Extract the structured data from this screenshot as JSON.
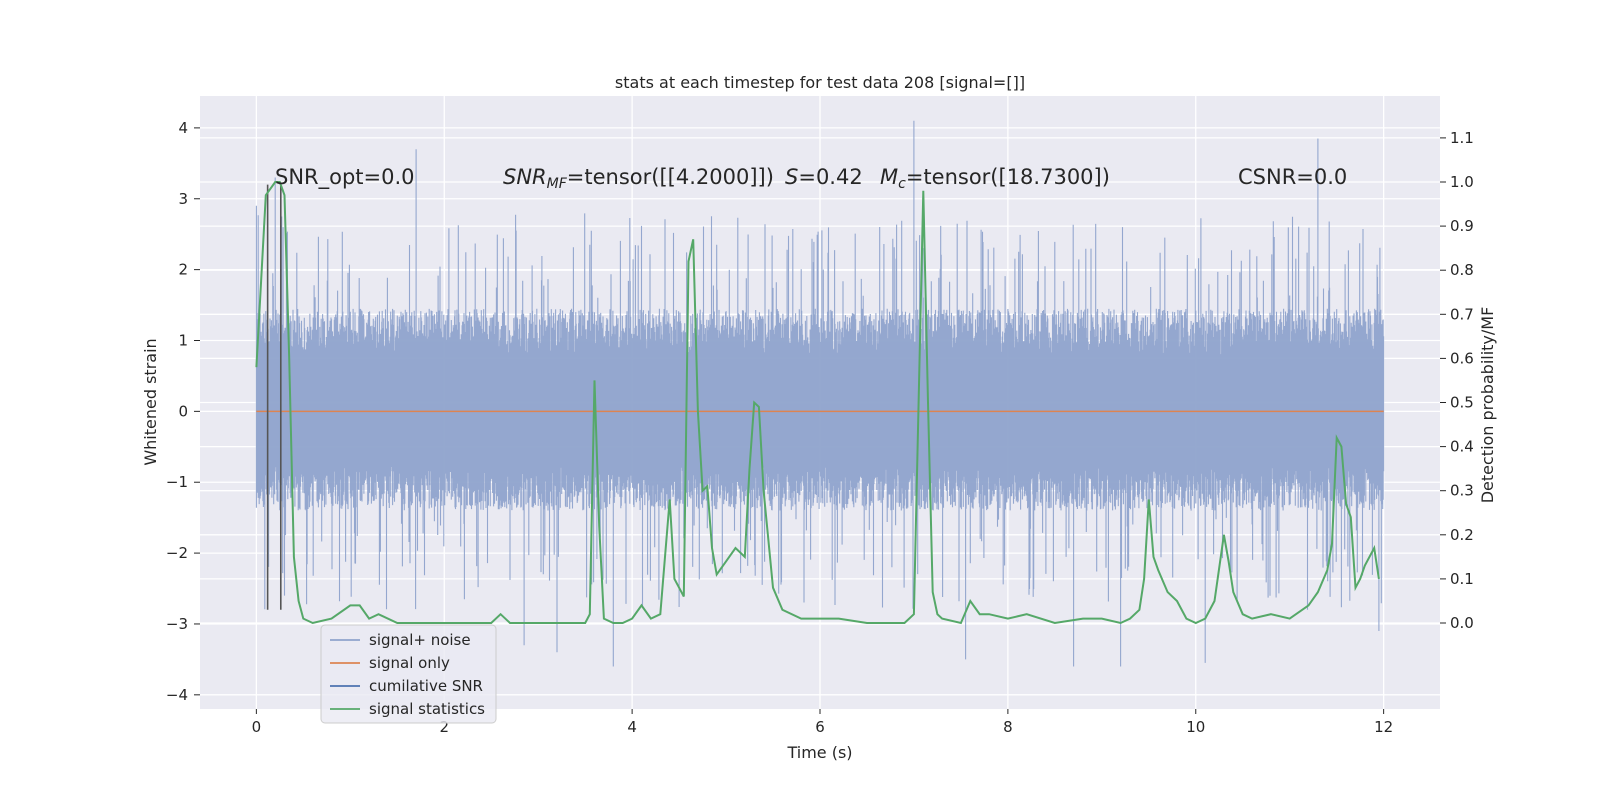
{
  "chart_data": {
    "type": "line",
    "title": "stats at each timestep for test data 208 [signal=[]]",
    "xlabel": "Time (s)",
    "ylabel_left": "Whitened strain",
    "ylabel_right": "Detection probability/MF",
    "xlim": [
      -0.6,
      12.6
    ],
    "ylim_left": [
      -4.2,
      4.45
    ],
    "ylim_right": [
      -0.195,
      1.195
    ],
    "xticks": [
      "0",
      "2",
      "4",
      "6",
      "8",
      "10",
      "12"
    ],
    "xtick_values": [
      0,
      2,
      4,
      6,
      8,
      10,
      12
    ],
    "yticks_left": [
      "−4",
      "−3",
      "−2",
      "−1",
      "0",
      "1",
      "2",
      "3",
      "4"
    ],
    "ytick_values_left": [
      -4,
      -3,
      -2,
      -1,
      0,
      1,
      2,
      3,
      4
    ],
    "yticks_right": [
      "0.0",
      "0.1",
      "0.2",
      "0.3",
      "0.4",
      "0.5",
      "0.6",
      "0.7",
      "0.8",
      "0.9",
      "1.0",
      "1.1"
    ],
    "ytick_values_right": [
      0.0,
      0.1,
      0.2,
      0.3,
      0.4,
      0.5,
      0.6,
      0.7,
      0.8,
      0.9,
      1.0,
      1.1
    ],
    "grid": true,
    "legend_position": "lower-left",
    "annotations": {
      "snr_opt": "SNR_opt=0.0",
      "snr_mf_label": "SNR",
      "snr_mf_sub": "MF",
      "snr_mf_value": "=tensor([[4.2000]])",
      "s_label": "S",
      "s_value": "=0.42",
      "mc_label": "M",
      "mc_sub": "c",
      "mc_value": "=tensor([18.7300])",
      "csnr": "CSNR=0.0"
    },
    "series": [
      {
        "name": "signal+ noise",
        "color": "#8fa3cc",
        "axis": "left",
        "style": "dense-noise",
        "t_range": [
          0,
          12
        ],
        "envelope": [
          -1.4,
          1.45
        ],
        "extreme_peaks": [
          {
            "t": 0.0,
            "v": 2.9
          },
          {
            "t": 0.2,
            "v": 3.3
          },
          {
            "t": 0.3,
            "v": -2.6
          },
          {
            "t": 1.7,
            "v": 3.7
          },
          {
            "t": 2.85,
            "v": -3.3
          },
          {
            "t": 3.2,
            "v": -3.4
          },
          {
            "t": 3.8,
            "v": -3.6
          },
          {
            "t": 7.0,
            "v": 4.1
          },
          {
            "t": 7.55,
            "v": -3.5
          },
          {
            "t": 8.7,
            "v": -3.6
          },
          {
            "t": 9.2,
            "v": -3.6
          },
          {
            "t": 10.1,
            "v": -3.55
          },
          {
            "t": 11.3,
            "v": 3.85
          },
          {
            "t": 11.95,
            "v": -3.1
          }
        ]
      },
      {
        "name": "signal only",
        "color": "#dd8452",
        "axis": "left",
        "x": [
          0,
          12
        ],
        "y": [
          0,
          0
        ]
      },
      {
        "name": "cumilative SNR",
        "color": "#4c72b0",
        "axis": "left",
        "x": [],
        "y": []
      },
      {
        "name": "signal statistics",
        "color": "#55a868",
        "axis": "right",
        "x": [
          0.0,
          0.1,
          0.2,
          0.25,
          0.3,
          0.35,
          0.4,
          0.45,
          0.5,
          0.6,
          0.8,
          1.0,
          1.1,
          1.2,
          1.3,
          1.5,
          2.0,
          2.5,
          2.6,
          2.7,
          3.0,
          3.4,
          3.5,
          3.55,
          3.6,
          3.65,
          3.7,
          3.8,
          3.9,
          4.0,
          4.1,
          4.2,
          4.3,
          4.4,
          4.45,
          4.5,
          4.55,
          4.6,
          4.65,
          4.7,
          4.75,
          4.8,
          4.85,
          4.9,
          5.0,
          5.1,
          5.2,
          5.25,
          5.3,
          5.35,
          5.4,
          5.5,
          5.6,
          5.8,
          6.0,
          6.2,
          6.5,
          6.8,
          6.9,
          7.0,
          7.1,
          7.15,
          7.2,
          7.25,
          7.3,
          7.5,
          7.6,
          7.7,
          7.8,
          8.0,
          8.2,
          8.5,
          8.8,
          9.0,
          9.2,
          9.3,
          9.4,
          9.45,
          9.5,
          9.55,
          9.6,
          9.7,
          9.8,
          9.9,
          10.0,
          10.1,
          10.2,
          10.3,
          10.35,
          10.4,
          10.5,
          10.6,
          10.8,
          11.0,
          11.2,
          11.3,
          11.4,
          11.45,
          11.5,
          11.55,
          11.6,
          11.65,
          11.7,
          11.75,
          11.8,
          11.9,
          11.95
        ],
        "y": [
          0.58,
          0.97,
          1.0,
          1.0,
          0.97,
          0.6,
          0.15,
          0.05,
          0.01,
          0.0,
          0.01,
          0.04,
          0.04,
          0.01,
          0.02,
          0.0,
          0.0,
          0.0,
          0.02,
          0.0,
          0.0,
          0.0,
          0.0,
          0.02,
          0.55,
          0.22,
          0.01,
          0.0,
          0.0,
          0.01,
          0.04,
          0.01,
          0.02,
          0.28,
          0.1,
          0.08,
          0.06,
          0.82,
          0.87,
          0.48,
          0.3,
          0.31,
          0.17,
          0.11,
          0.14,
          0.17,
          0.15,
          0.35,
          0.5,
          0.49,
          0.3,
          0.08,
          0.03,
          0.01,
          0.01,
          0.01,
          0.0,
          0.0,
          0.0,
          0.02,
          0.98,
          0.5,
          0.07,
          0.02,
          0.01,
          0.0,
          0.05,
          0.02,
          0.02,
          0.01,
          0.02,
          0.0,
          0.01,
          0.01,
          0.0,
          0.01,
          0.03,
          0.1,
          0.28,
          0.15,
          0.12,
          0.07,
          0.05,
          0.01,
          0.0,
          0.01,
          0.05,
          0.2,
          0.14,
          0.07,
          0.02,
          0.01,
          0.02,
          0.01,
          0.04,
          0.07,
          0.12,
          0.18,
          0.42,
          0.4,
          0.27,
          0.24,
          0.08,
          0.1,
          0.13,
          0.17,
          0.1
        ]
      }
    ],
    "vertical_lines": [
      {
        "t": 0.12,
        "v_range": [
          -2.8,
          3.2
        ]
      },
      {
        "t": 0.26,
        "v_range": [
          -2.8,
          3.2
        ]
      }
    ]
  }
}
